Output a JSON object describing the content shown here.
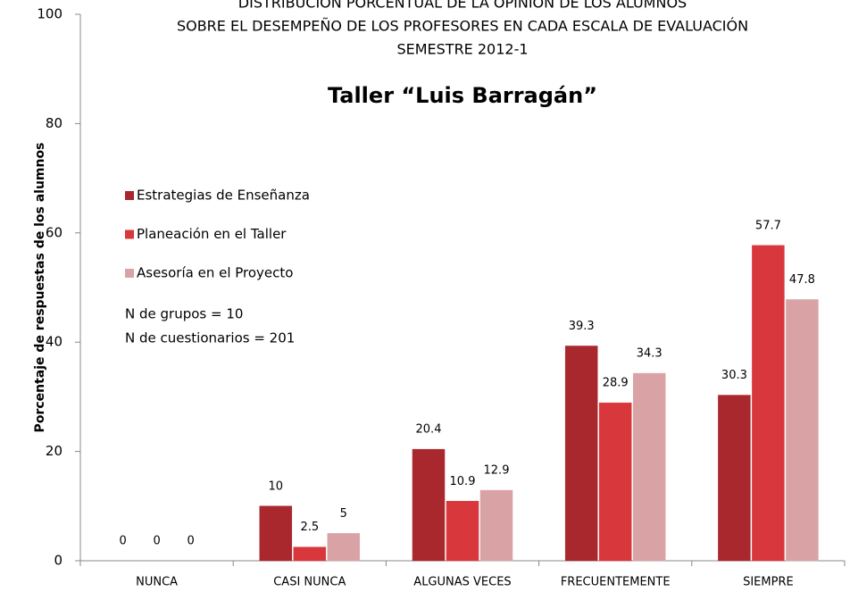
{
  "chart_data": {
    "type": "bar",
    "title": [
      "DISTRIBUCIÓN PORCENTUAL DE LA OPINIÓN DE LOS ALUMNOS",
      "SOBRE EL DESEMPEÑO DE LOS PROFESORES EN CADA ESCALA DE EVALUACIÓN",
      "SEMESTRE 2012-1"
    ],
    "subtitle": "Taller “Luis Barragán”",
    "y_label": "Porcentaje de respuestas de los alumnos",
    "categories": [
      "NUNCA",
      "CASI NUNCA",
      "ALGUNAS VECES",
      "FRECUENTEMENTE",
      "SIEMPRE"
    ],
    "series": [
      {
        "name": "Estrategias de Enseñanza",
        "color": "#a8282d",
        "values": [
          0,
          10,
          20.4,
          39.3,
          30.3
        ]
      },
      {
        "name": "Planeación en el Taller",
        "color": "#d8383c",
        "values": [
          0,
          2.5,
          10.9,
          28.9,
          57.7
        ]
      },
      {
        "name": "Asesoría en el Proyecto",
        "color": "#d9a3a6",
        "values": [
          0,
          5,
          12.9,
          34.3,
          47.8
        ]
      }
    ],
    "annotations": [
      "N de grupos = 10",
      "N de cuestionarios = 201"
    ],
    "ylim": [
      0,
      100
    ],
    "yticks": [
      0,
      20,
      40,
      60,
      80,
      100
    ],
    "legend": "upper left"
  }
}
